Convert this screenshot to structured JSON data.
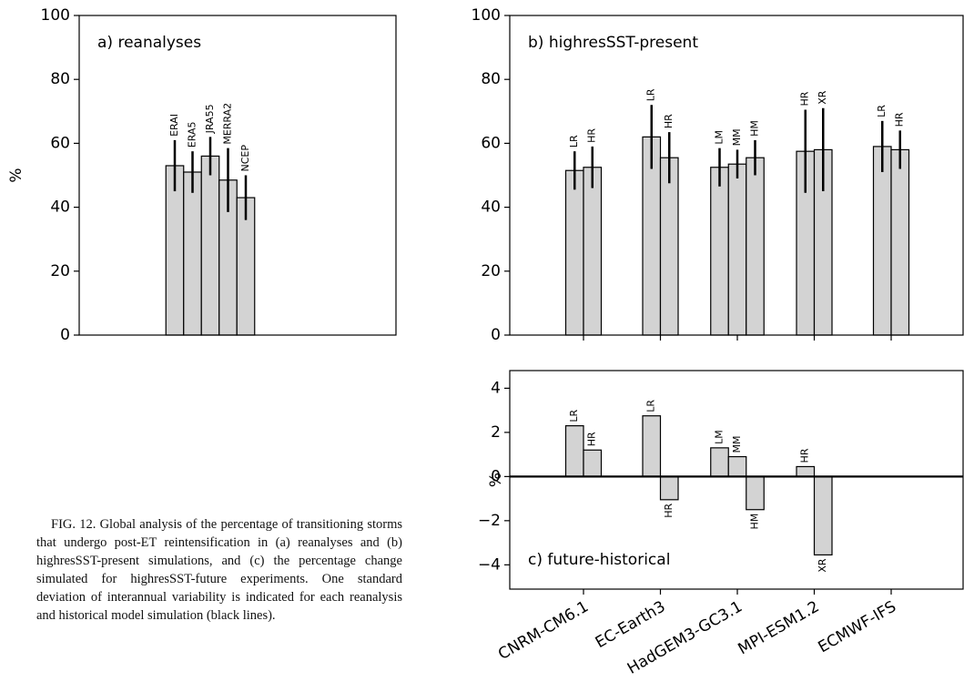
{
  "chart_data": [
    {
      "type": "bar",
      "title": "a) reanalyses",
      "ylabel": "%",
      "ylim": [
        0,
        100
      ],
      "yticks": [
        0,
        20,
        40,
        60,
        80,
        100
      ],
      "color": "#d3d3d3",
      "bars": [
        {
          "label": "ERAI",
          "value": 53,
          "error": 8
        },
        {
          "label": "ERA5",
          "value": 51,
          "error": 6.5
        },
        {
          "label": "JRA55",
          "value": 56,
          "error": 6
        },
        {
          "label": "MERRA2",
          "value": 48.5,
          "error": 10
        },
        {
          "label": "NCEP",
          "value": 43,
          "error": 7
        }
      ]
    },
    {
      "type": "bar",
      "title": "b) highresSST-present",
      "ylim": [
        0,
        100
      ],
      "yticks": [
        0,
        20,
        40,
        60,
        80,
        100
      ],
      "color": "#d3d3d3",
      "groups": [
        {
          "bars": [
            {
              "label": "LR",
              "value": 51.5,
              "error": 6
            },
            {
              "label": "HR",
              "value": 52.5,
              "error": 6.5
            }
          ]
        },
        {
          "bars": [
            {
              "label": "LR",
              "value": 62,
              "error": 10
            },
            {
              "label": "HR",
              "value": 55.5,
              "error": 8
            }
          ]
        },
        {
          "bars": [
            {
              "label": "LM",
              "value": 52.5,
              "error": 6
            },
            {
              "label": "MM",
              "value": 53.5,
              "error": 4.5
            },
            {
              "label": "HM",
              "value": 55.5,
              "error": 5.5
            }
          ]
        },
        {
          "bars": [
            {
              "label": "HR",
              "value": 57.5,
              "error": 13
            },
            {
              "label": "XR",
              "value": 58,
              "error": 13
            }
          ]
        },
        {
          "bars": [
            {
              "label": "LR",
              "value": 59,
              "error": 8
            },
            {
              "label": "HR",
              "value": 58,
              "error": 6
            }
          ]
        }
      ]
    },
    {
      "type": "bar",
      "title": "c) future-historical",
      "ylabel": "%",
      "ylim": [
        -5.1,
        4.8
      ],
      "yticks": [
        {
          "value": -4,
          "label": "−4"
        },
        {
          "value": -2,
          "label": "−2"
        },
        0,
        2,
        4
      ],
      "color": "#d3d3d3",
      "groups": [
        {
          "name": "CNRM-CM6.1",
          "bars": [
            {
              "label": "LR",
              "value": 2.3
            },
            {
              "label": "HR",
              "value": 1.2
            }
          ]
        },
        {
          "name": "EC-Earth3",
          "bars": [
            {
              "label": "LR",
              "value": 2.75
            },
            {
              "label": "HR",
              "value": -1.05
            }
          ]
        },
        {
          "name": "HadGEM3-GC3.1",
          "bars": [
            {
              "label": "LM",
              "value": 1.3
            },
            {
              "label": "MM",
              "value": 0.9
            },
            {
              "label": "HM",
              "value": -1.5
            }
          ]
        },
        {
          "name": "MPI-ESM1.2",
          "bars": [
            {
              "label": "HR",
              "value": 0.45
            },
            {
              "label": "XR",
              "value": -3.55
            }
          ]
        },
        {
          "name": "ECMWF-IFS",
          "bars": []
        }
      ]
    }
  ],
  "caption": {
    "label": "FIG. 12.",
    "text": "Global analysis of the percentage of transitioning storms that undergo post-ET reintensification in (a) reanalyses and (b) highresSST-present simulations, and (c) the percentage change simulated for highresSST-future experiments. One standard deviation of interannual variability is indicated for each reanalysis and historical model simulation (black lines)."
  }
}
